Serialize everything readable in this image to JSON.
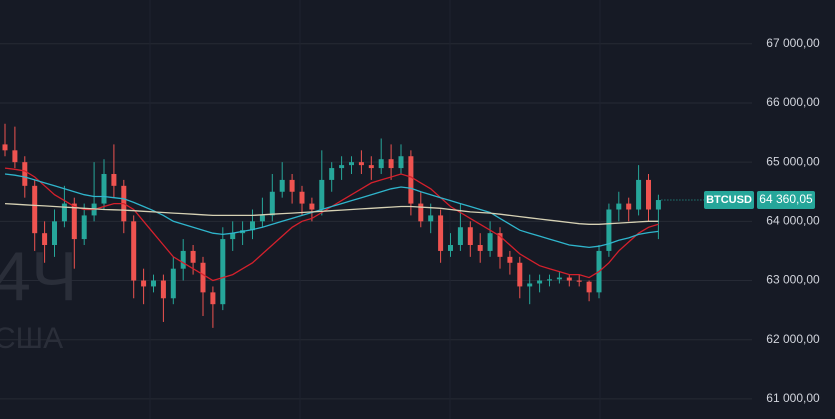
{
  "chart_data": {
    "type": "candlestick",
    "watermark": {
      "interval": "4Ч",
      "region": "США"
    },
    "symbol": "BTCUSD",
    "last_price_label": "64 360,05",
    "up_color": "#26a69a",
    "down_color": "#ef5350",
    "ylim": [
      60660,
      67740
    ],
    "yticks": [
      {
        "value": 61000,
        "label": "61 000,00"
      },
      {
        "value": 62000,
        "label": "62 000,00"
      },
      {
        "value": 63000,
        "label": "63 000,00"
      },
      {
        "value": 64000,
        "label": "64 000,00"
      },
      {
        "value": 65000,
        "label": "65 000,00"
      },
      {
        "value": 66000,
        "label": "66 000,00"
      },
      {
        "value": 67000,
        "label": "67 000,00"
      }
    ],
    "grid": true,
    "open": [
      65300,
      65200,
      65000,
      64600,
      63800,
      63600,
      64000,
      64300,
      63700,
      64100,
      64300,
      64800,
      64600,
      64000,
      63000,
      62900,
      63000,
      62700,
      63200,
      63500,
      63300,
      62800,
      62600,
      63700,
      63800,
      63850,
      64000,
      64100,
      64500,
      64700,
      64500,
      64300,
      64200,
      64700,
      64900,
      64950,
      65000,
      64950,
      64900,
      65050,
      64900,
      65100,
      64300,
      64000,
      64100,
      63500,
      63600,
      63900,
      63600,
      63500,
      63800,
      63400,
      63300,
      62900,
      62950,
      63000,
      63020,
      63050,
      63000,
      62980,
      62800,
      63500,
      64200,
      64300,
      64200,
      64700,
      64200
    ],
    "high": [
      65650,
      65600,
      65100,
      64700,
      64000,
      64200,
      64600,
      64400,
      64300,
      65000,
      65050,
      65300,
      64700,
      64100,
      63200,
      63100,
      63100,
      63400,
      63700,
      63600,
      63400,
      62900,
      63900,
      64000,
      64000,
      64200,
      64400,
      64800,
      65000,
      64800,
      64600,
      64400,
      65200,
      65000,
      65100,
      65100,
      65200,
      65100,
      65400,
      65300,
      65300,
      65200,
      64500,
      64300,
      64200,
      63800,
      64300,
      64000,
      63800,
      64000,
      63900,
      63500,
      63400,
      63100,
      63100,
      63100,
      63150,
      63100,
      63100,
      63000,
      63600,
      64300,
      64500,
      64400,
      64950,
      64800,
      64450
    ],
    "low": [
      65100,
      64900,
      64400,
      63500,
      63300,
      63400,
      63900,
      63200,
      63600,
      64000,
      64200,
      64400,
      63800,
      62700,
      62600,
      62800,
      62300,
      62600,
      63000,
      63100,
      62400,
      62200,
      62500,
      63500,
      63600,
      63700,
      63900,
      64000,
      64400,
      64300,
      64100,
      64000,
      64100,
      64500,
      64700,
      64800,
      64800,
      64700,
      64800,
      64700,
      64800,
      64100,
      63900,
      63800,
      63300,
      63400,
      63500,
      63400,
      63300,
      63400,
      63200,
      63100,
      62700,
      62600,
      62800,
      62900,
      62950,
      62900,
      62900,
      62650,
      62700,
      63400,
      64000,
      64000,
      64100,
      64000,
      63700
    ],
    "close": [
      65200,
      65000,
      64600,
      63800,
      63600,
      64000,
      64300,
      63700,
      64100,
      64300,
      64800,
      64600,
      64000,
      63000,
      62900,
      63000,
      62700,
      63200,
      63500,
      63300,
      62800,
      62600,
      63700,
      63800,
      63850,
      64000,
      64100,
      64500,
      64700,
      64500,
      64300,
      64200,
      64700,
      64900,
      64950,
      65000,
      64950,
      64900,
      65050,
      64900,
      65100,
      64300,
      64000,
      64100,
      63500,
      63600,
      63900,
      63600,
      63500,
      63800,
      63400,
      63300,
      62900,
      62950,
      63000,
      63020,
      63050,
      63000,
      62980,
      62800,
      63500,
      64200,
      64300,
      64200,
      64700,
      64200,
      64360.05
    ],
    "series": [
      {
        "color": "#d4202c",
        "values": [
          64900,
          64880,
          64850,
          64750,
          64600,
          64450,
          64350,
          64250,
          64200,
          64200,
          64250,
          64300,
          64300,
          64200,
          64000,
          63800,
          63600,
          63400,
          63300,
          63200,
          63100,
          63000,
          63050,
          63100,
          63200,
          63300,
          63450,
          63600,
          63750,
          63900,
          64000,
          64050,
          64150,
          64250,
          64350,
          64450,
          64550,
          64650,
          64700,
          64750,
          64800,
          64750,
          64650,
          64550,
          64400,
          64250,
          64150,
          64050,
          63950,
          63850,
          63750,
          63600,
          63450,
          63350,
          63250,
          63200,
          63150,
          63100,
          63100,
          63050,
          63150,
          63300,
          63500,
          63650,
          63800,
          63900,
          63950
        ]
      },
      {
        "color": "#2fb5cc",
        "values": [
          64800,
          64780,
          64750,
          64700,
          64650,
          64600,
          64550,
          64500,
          64450,
          64420,
          64420,
          64400,
          64380,
          64320,
          64250,
          64180,
          64100,
          64000,
          63950,
          63900,
          63850,
          63800,
          63780,
          63800,
          63830,
          63860,
          63900,
          63950,
          64000,
          64050,
          64100,
          64150,
          64200,
          64250,
          64300,
          64350,
          64400,
          64450,
          64500,
          64550,
          64580,
          64560,
          64500,
          64450,
          64400,
          64350,
          64300,
          64250,
          64200,
          64150,
          64050,
          63950,
          63850,
          63800,
          63750,
          63700,
          63650,
          63600,
          63580,
          63560,
          63580,
          63620,
          63680,
          63720,
          63780,
          63810,
          63830
        ]
      },
      {
        "color": "#d6d1b4",
        "values": [
          64300,
          64290,
          64280,
          64270,
          64260,
          64250,
          64240,
          64230,
          64220,
          64210,
          64200,
          64195,
          64190,
          64180,
          64170,
          64160,
          64150,
          64140,
          64130,
          64120,
          64110,
          64100,
          64100,
          64100,
          64100,
          64100,
          64110,
          64120,
          64130,
          64140,
          64150,
          64160,
          64170,
          64180,
          64190,
          64200,
          64210,
          64220,
          64230,
          64240,
          64250,
          64250,
          64240,
          64230,
          64220,
          64200,
          64180,
          64160,
          64150,
          64140,
          64120,
          64100,
          64080,
          64060,
          64040,
          64020,
          64000,
          63980,
          63960,
          63950,
          63950,
          63960,
          63970,
          63980,
          63990,
          64000,
          64000
        ]
      }
    ]
  }
}
